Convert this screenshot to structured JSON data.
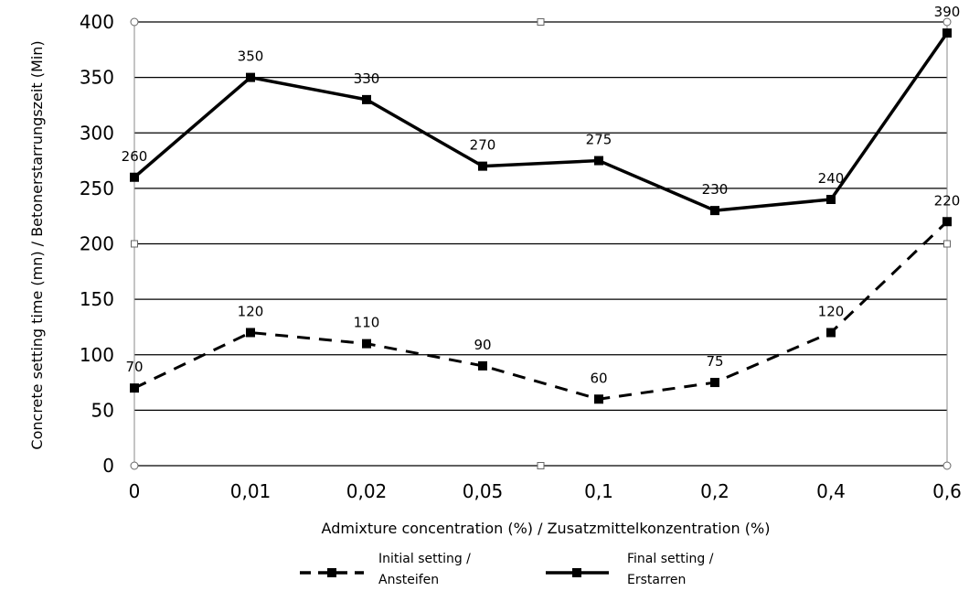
{
  "chart_data": {
    "type": "line",
    "categories": [
      "0",
      "0,01",
      "0,02",
      "0,05",
      "0,1",
      "0,2",
      "0,4",
      "0,6"
    ],
    "xlabel": "Admixture concentration (%) / Zusatzmittelkonzentration (%)",
    "ylabel": "Concrete setting time (mn) / Betonerstarrungszeit (Min)",
    "ylim": [
      0,
      400
    ],
    "yticks": [
      "0",
      "50",
      "100",
      "150",
      "200",
      "250",
      "300",
      "350",
      "400"
    ],
    "grid": true,
    "legend_position": "bottom",
    "series": [
      {
        "name_line1": "Final setting /",
        "name_line2": "Erstarren",
        "style": "solid",
        "values": [
          260,
          350,
          330,
          270,
          275,
          230,
          240,
          390
        ],
        "labels": [
          "260",
          "350",
          "330",
          "270",
          "275",
          "230",
          "240",
          "390"
        ]
      },
      {
        "name_line1": "Initial setting /",
        "name_line2": "Ansteifen",
        "style": "dashed",
        "values": [
          70,
          120,
          110,
          90,
          60,
          75,
          120,
          220
        ],
        "labels": [
          "70",
          "120",
          "110",
          "90",
          "60",
          "75",
          "120",
          "220"
        ]
      }
    ]
  }
}
